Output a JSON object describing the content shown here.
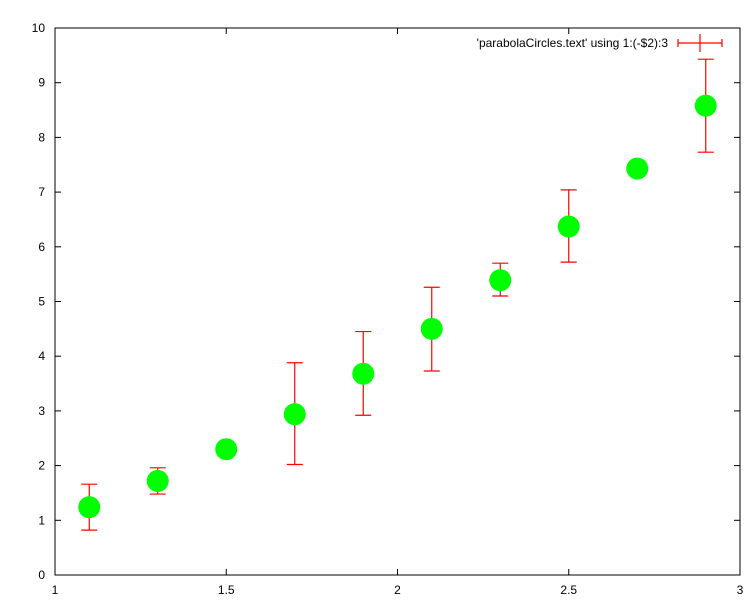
{
  "chart_data": {
    "type": "scatter",
    "title": "",
    "xlabel": "",
    "ylabel": "",
    "xlim": [
      1,
      3
    ],
    "ylim": [
      0,
      10
    ],
    "x_ticks": [
      1,
      1.5,
      2,
      2.5,
      3
    ],
    "x_tick_labels": [
      "1",
      "1.5",
      "2",
      "2.5",
      "3"
    ],
    "y_ticks": [
      0,
      1,
      2,
      3,
      4,
      5,
      6,
      7,
      8,
      9,
      10
    ],
    "y_tick_labels": [
      "0",
      "1",
      "2",
      "3",
      "4",
      "5",
      "6",
      "7",
      "8",
      "9",
      "10"
    ],
    "legend_position": "top-right",
    "grid": false,
    "series": [
      {
        "name": "'parabolaCircles.text' using 1:(-$2):3",
        "style": "circles-with-errorbars",
        "marker_color": "#00ff00",
        "errorbar_color": "#ff0000",
        "points": [
          {
            "x": 1.1,
            "y": 1.24,
            "ylow": 0.82,
            "yhigh": 1.66
          },
          {
            "x": 1.3,
            "y": 1.72,
            "ylow": 1.48,
            "yhigh": 1.96
          },
          {
            "x": 1.5,
            "y": 2.3,
            "ylow": 2.3,
            "yhigh": 2.3
          },
          {
            "x": 1.7,
            "y": 2.94,
            "ylow": 2.02,
            "yhigh": 3.88
          },
          {
            "x": 1.9,
            "y": 3.68,
            "ylow": 2.92,
            "yhigh": 4.45
          },
          {
            "x": 2.1,
            "y": 4.5,
            "ylow": 3.73,
            "yhigh": 5.26
          },
          {
            "x": 2.3,
            "y": 5.39,
            "ylow": 5.1,
            "yhigh": 5.7
          },
          {
            "x": 2.5,
            "y": 6.37,
            "ylow": 5.72,
            "yhigh": 7.04
          },
          {
            "x": 2.7,
            "y": 7.43,
            "ylow": 7.43,
            "yhigh": 7.43
          },
          {
            "x": 2.9,
            "y": 8.58,
            "ylow": 7.73,
            "yhigh": 9.43
          }
        ]
      }
    ]
  }
}
